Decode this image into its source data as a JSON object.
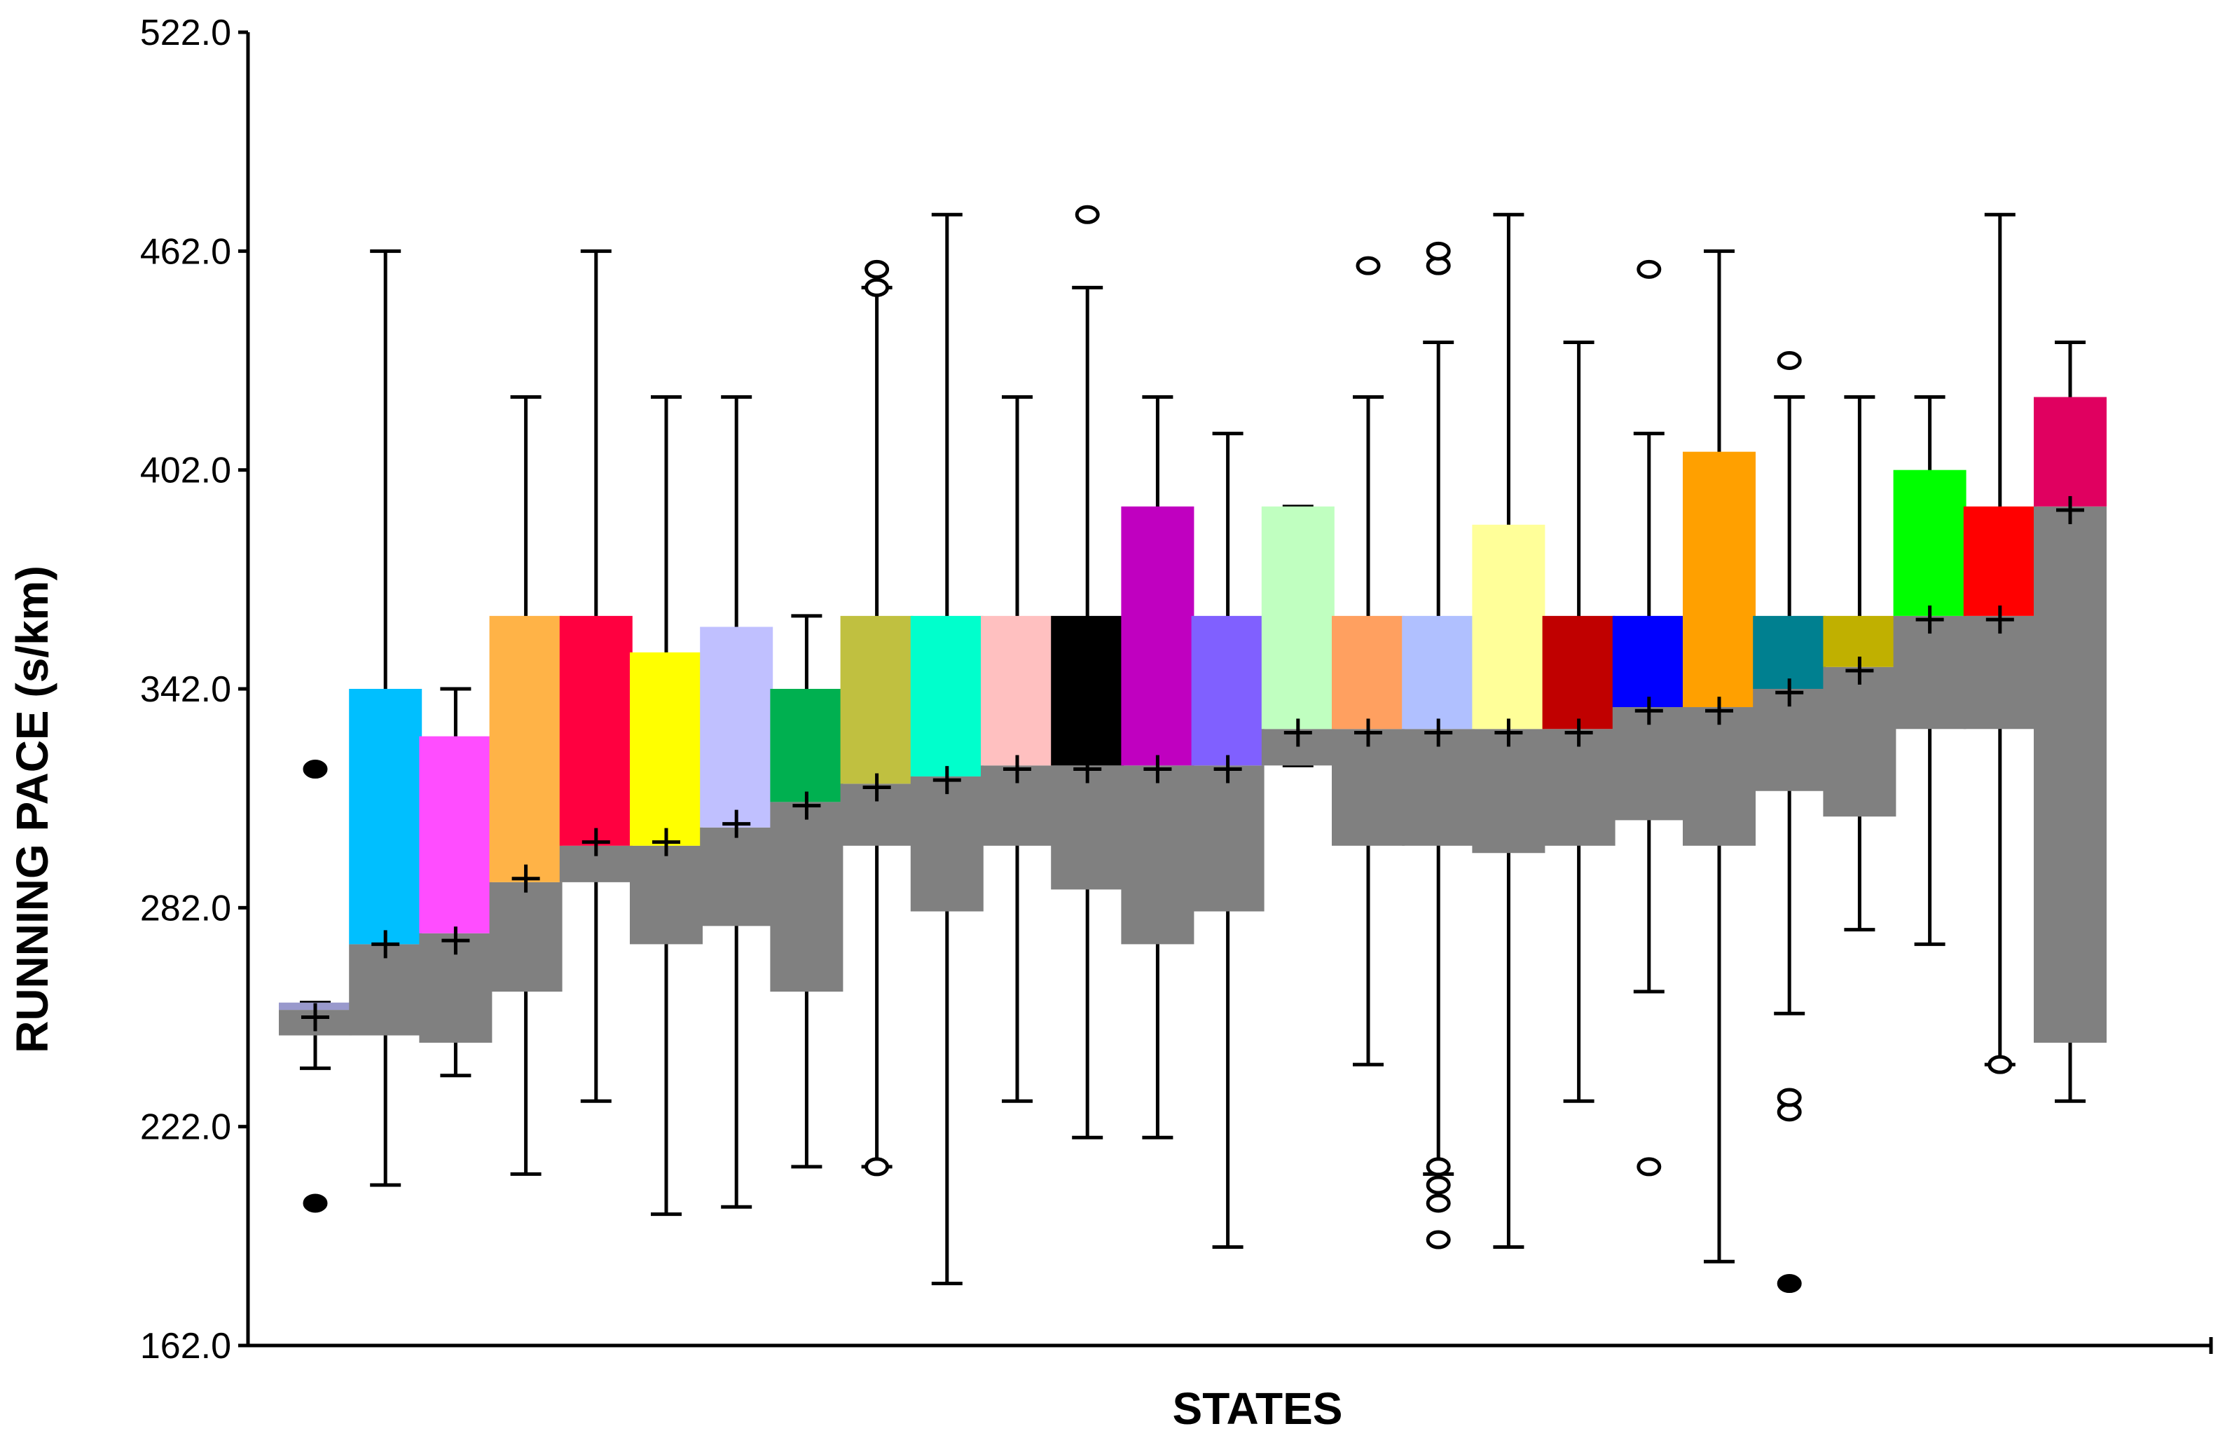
{
  "chart_data": {
    "type": "box",
    "title": "",
    "xlabel": "STATES",
    "ylabel": "RUNNING PACE (s/km)",
    "ylim": [
      162,
      522
    ],
    "yticks": [
      "162.0",
      "222.0",
      "282.0",
      "342.0",
      "402.0",
      "462.0",
      "522.0"
    ],
    "grid": false,
    "legend": "none",
    "lower_box_color": "#808080",
    "boxes": [
      {
        "color": "#9999cc",
        "low": 238,
        "q1": 247,
        "median": 254,
        "q3": 256,
        "high": 256,
        "mean": 252,
        "outliers_filled": [
          320,
          201
        ],
        "outliers_open": []
      },
      {
        "color": "#00bfff",
        "low": 206,
        "q1": 247,
        "median": 272,
        "q3": 342,
        "high": 462,
        "mean": 272,
        "outliers_filled": [],
        "outliers_open": []
      },
      {
        "color": "#ff4dff",
        "low": 236,
        "q1": 245,
        "median": 275,
        "q3": 329,
        "high": 342,
        "mean": 273,
        "outliers_filled": [],
        "outliers_open": []
      },
      {
        "color": "#ffb347",
        "low": 209,
        "q1": 259,
        "median": 289,
        "q3": 362,
        "high": 422,
        "mean": 290,
        "outliers_filled": [],
        "outliers_open": []
      },
      {
        "color": "#ff0040",
        "low": 229,
        "q1": 289,
        "median": 299,
        "q3": 362,
        "high": 462,
        "mean": 300,
        "outliers_filled": [],
        "outliers_open": []
      },
      {
        "color": "#ffff00",
        "low": 198,
        "q1": 272,
        "median": 299,
        "q3": 352,
        "high": 422,
        "mean": 300,
        "outliers_filled": [],
        "outliers_open": []
      },
      {
        "color": "#c0c0ff",
        "low": 200,
        "q1": 277,
        "median": 304,
        "q3": 359,
        "high": 422,
        "mean": 305,
        "outliers_filled": [],
        "outliers_open": []
      },
      {
        "color": "#00b050",
        "low": 211,
        "q1": 259,
        "median": 311,
        "q3": 342,
        "high": 362,
        "mean": 310,
        "outliers_filled": [],
        "outliers_open": []
      },
      {
        "color": "#c0c040",
        "low": 211,
        "q1": 299,
        "median": 316,
        "q3": 362,
        "high": 452,
        "mean": 315,
        "outliers_filled": [],
        "outliers_open": [
          211,
          452,
          457
        ]
      },
      {
        "color": "#00ffcc",
        "low": 179,
        "q1": 281,
        "median": 318,
        "q3": 362,
        "high": 472,
        "mean": 317,
        "outliers_filled": [],
        "outliers_open": []
      },
      {
        "color": "#ffc0c0",
        "low": 229,
        "q1": 299,
        "median": 321,
        "q3": 362,
        "high": 422,
        "mean": 320,
        "outliers_filled": [],
        "outliers_open": []
      },
      {
        "color": "#000000",
        "low": 219,
        "q1": 287,
        "median": 321,
        "q3": 362,
        "high": 452,
        "mean": 320,
        "outliers_filled": [],
        "outliers_open": [
          472
        ]
      },
      {
        "color": "#c000c0",
        "low": 219,
        "q1": 272,
        "median": 321,
        "q3": 392,
        "high": 422,
        "mean": 320,
        "outliers_filled": [],
        "outliers_open": []
      },
      {
        "color": "#8060ff",
        "low": 189,
        "q1": 281,
        "median": 321,
        "q3": 362,
        "high": 412,
        "mean": 320,
        "outliers_filled": [],
        "outliers_open": []
      },
      {
        "color": "#c0ffc0",
        "low": 321,
        "q1": 321,
        "median": 331,
        "q3": 392,
        "high": 392,
        "mean": 330,
        "outliers_filled": [],
        "outliers_open": []
      },
      {
        "color": "#ffa060",
        "low": 239,
        "q1": 299,
        "median": 331,
        "q3": 362,
        "high": 422,
        "mean": 330,
        "outliers_filled": [],
        "outliers_open": [
          458
        ]
      },
      {
        "color": "#b0c0ff",
        "low": 209,
        "q1": 299,
        "median": 331,
        "q3": 362,
        "high": 437,
        "mean": 330,
        "outliers_filled": [],
        "outliers_open": [
          211,
          206,
          201,
          191,
          458,
          462
        ]
      },
      {
        "color": "#ffff99",
        "low": 189,
        "q1": 297,
        "median": 331,
        "q3": 387,
        "high": 472,
        "mean": 330,
        "outliers_filled": [],
        "outliers_open": []
      },
      {
        "color": "#c00000",
        "low": 229,
        "q1": 299,
        "median": 331,
        "q3": 362,
        "high": 437,
        "mean": 330,
        "outliers_filled": [],
        "outliers_open": []
      },
      {
        "color": "#0000ff",
        "low": 259,
        "q1": 306,
        "median": 337,
        "q3": 362,
        "high": 412,
        "mean": 336,
        "outliers_filled": [],
        "outliers_open": [
          211,
          457
        ]
      },
      {
        "color": "#ffa000",
        "low": 185,
        "q1": 299,
        "median": 337,
        "q3": 407,
        "high": 462,
        "mean": 336,
        "outliers_filled": [],
        "outliers_open": []
      },
      {
        "color": "#008090",
        "low": 253,
        "q1": 314,
        "median": 342,
        "q3": 362,
        "high": 422,
        "mean": 341,
        "outliers_filled": [
          179
        ],
        "outliers_open": [
          226,
          230,
          432
        ]
      },
      {
        "color": "#c0b000",
        "low": 276,
        "q1": 307,
        "median": 348,
        "q3": 362,
        "high": 422,
        "mean": 347,
        "outliers_filled": [],
        "outliers_open": []
      },
      {
        "color": "#00ff00",
        "low": 272,
        "q1": 331,
        "median": 362,
        "q3": 402,
        "high": 422,
        "mean": 361,
        "outliers_filled": [],
        "outliers_open": []
      },
      {
        "color": "#ff0000",
        "low": 239,
        "q1": 331,
        "median": 362,
        "q3": 392,
        "high": 472,
        "mean": 361,
        "outliers_filled": [],
        "outliers_open": [
          239
        ]
      },
      {
        "color": "#e00060",
        "low": 229,
        "q1": 245,
        "median": 392,
        "q3": 422,
        "high": 437,
        "mean": 391,
        "outliers_filled": [],
        "outliers_open": []
      }
    ]
  }
}
